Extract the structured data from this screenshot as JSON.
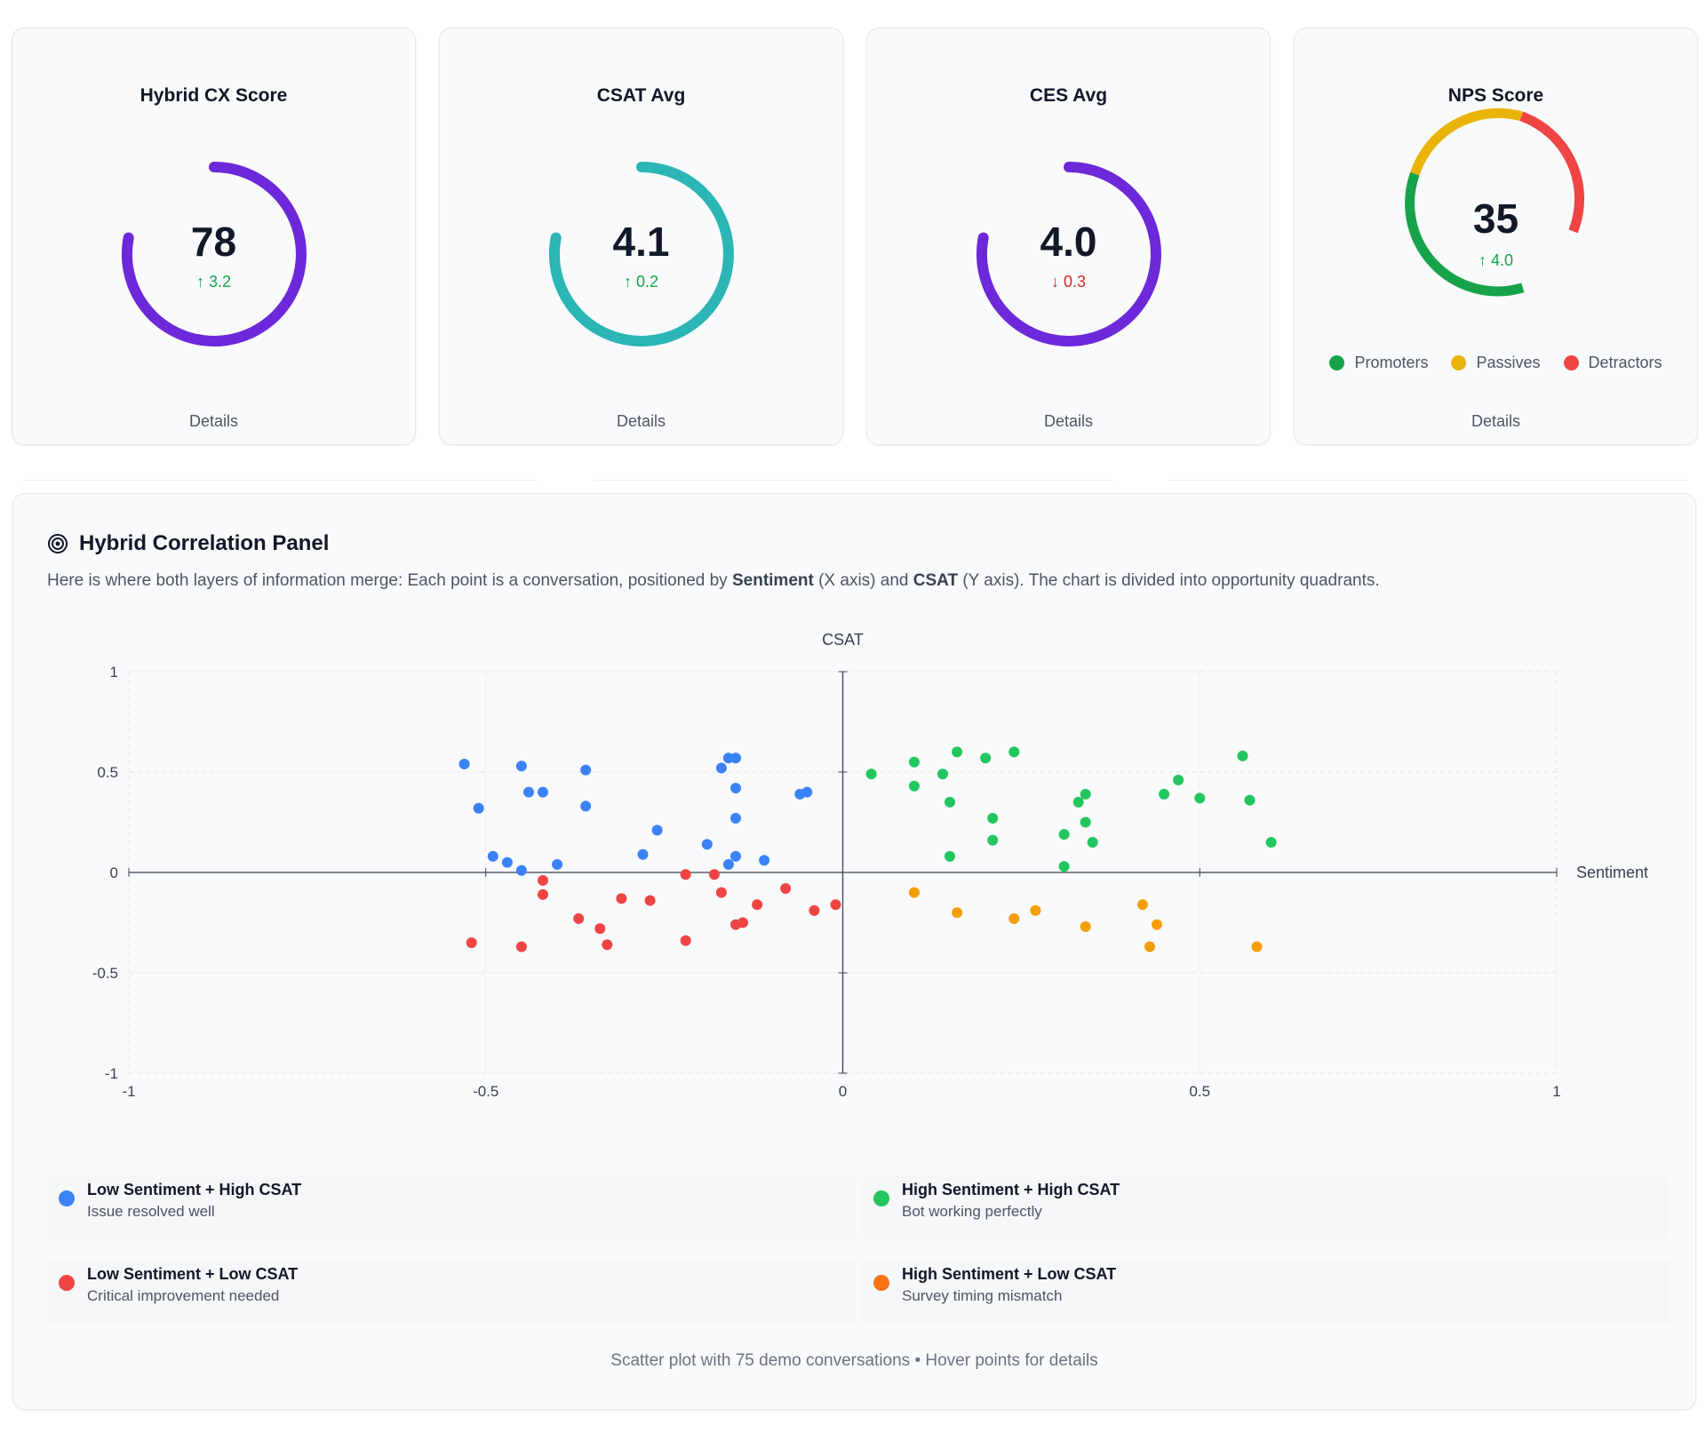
{
  "cards": [
    {
      "title": "Hybrid CX Score",
      "value": "78",
      "delta": "↑ 3.2",
      "delta_direction": "up",
      "details_label": "Details",
      "gauge_color": "#6d28d9",
      "fraction": 0.78
    },
    {
      "title": "CSAT Avg",
      "value": "4.1",
      "delta": "↑ 0.2",
      "delta_direction": "up",
      "details_label": "Details",
      "gauge_color": "#2bb5b5",
      "fraction": 0.78
    },
    {
      "title": "CES Avg",
      "value": "4.0",
      "delta": "↓ 0.3",
      "delta_direction": "down",
      "details_label": "Details",
      "gauge_color": "#6d28d9",
      "fraction": 0.78
    },
    {
      "title": "NPS Score",
      "value": "35",
      "delta": "↑ 4.0",
      "delta_direction": "up",
      "details_label": "Details",
      "legend": [
        {
          "label": "Promoters",
          "color": "#16a34a"
        },
        {
          "label": "Passives",
          "color": "#eab308"
        },
        {
          "label": "Detractors",
          "color": "#ef4444"
        }
      ]
    }
  ],
  "panel": {
    "icon": "target-icon",
    "title": "Hybrid Correlation Panel",
    "desc_pre": "Here is where both layers of information merge: Each point is a conversation, positioned by ",
    "desc_b1": "Sentiment",
    "desc_mid": " (X axis) and ",
    "desc_b2": "CSAT",
    "desc_post": " (Y axis). The chart is divided into opportunity quadrants.",
    "footnote": "Scatter plot with 75 demo conversations • Hover points for details"
  },
  "quadrants": [
    {
      "title": "Low Sentiment + High CSAT",
      "subtitle": "Issue resolved well",
      "color": "#3b82f6"
    },
    {
      "title": "High Sentiment + High CSAT",
      "subtitle": "Bot working perfectly",
      "color": "#22c55e"
    },
    {
      "title": "Low Sentiment + Low CSAT",
      "subtitle": "Critical improvement needed",
      "color": "#ef4444"
    },
    {
      "title": "High Sentiment + Low CSAT",
      "subtitle": "Survey timing mismatch",
      "color": "#f97316"
    }
  ],
  "chart_data": {
    "type": "scatter",
    "title": "",
    "xlabel": "Sentiment",
    "ylabel": "CSAT",
    "xlim": [
      -1,
      1
    ],
    "ylim": [
      -1,
      1
    ],
    "x_ticks": [
      "-1",
      "-0.5",
      "0",
      "0.5",
      "1"
    ],
    "y_ticks": [
      "1",
      "0.5",
      "0",
      "-0.5",
      "-1"
    ],
    "grid": true,
    "series": [
      {
        "color": "#3b82f6",
        "points": [
          [
            -0.53,
            0.54
          ],
          [
            -0.45,
            0.53
          ],
          [
            -0.36,
            0.51
          ],
          [
            -0.17,
            0.52
          ],
          [
            -0.16,
            0.57
          ],
          [
            -0.15,
            0.57
          ],
          [
            -0.44,
            0.4
          ],
          [
            -0.42,
            0.4
          ],
          [
            -0.51,
            0.32
          ],
          [
            -0.36,
            0.33
          ],
          [
            -0.15,
            0.42
          ],
          [
            -0.06,
            0.39
          ],
          [
            -0.05,
            0.4
          ],
          [
            -0.15,
            0.27
          ],
          [
            -0.26,
            0.21
          ],
          [
            -0.19,
            0.14
          ],
          [
            -0.28,
            0.09
          ],
          [
            -0.49,
            0.08
          ],
          [
            -0.47,
            0.05
          ],
          [
            -0.45,
            0.01
          ],
          [
            -0.4,
            0.04
          ],
          [
            -0.16,
            0.04
          ],
          [
            -0.15,
            0.08
          ],
          [
            -0.11,
            0.06
          ]
        ]
      },
      {
        "color": "#22c55e",
        "points": [
          [
            0.04,
            0.49
          ],
          [
            0.1,
            0.55
          ],
          [
            0.16,
            0.6
          ],
          [
            0.2,
            0.57
          ],
          [
            0.24,
            0.6
          ],
          [
            0.14,
            0.49
          ],
          [
            0.1,
            0.43
          ],
          [
            0.15,
            0.35
          ],
          [
            0.21,
            0.27
          ],
          [
            0.34,
            0.39
          ],
          [
            0.33,
            0.35
          ],
          [
            0.45,
            0.39
          ],
          [
            0.47,
            0.46
          ],
          [
            0.5,
            0.37
          ],
          [
            0.56,
            0.58
          ],
          [
            0.57,
            0.36
          ],
          [
            0.34,
            0.25
          ],
          [
            0.31,
            0.19
          ],
          [
            0.21,
            0.16
          ],
          [
            0.35,
            0.15
          ],
          [
            0.6,
            0.15
          ],
          [
            0.15,
            0.08
          ],
          [
            0.31,
            0.03
          ]
        ]
      },
      {
        "color": "#ef4444",
        "points": [
          [
            -0.22,
            -0.01
          ],
          [
            -0.18,
            -0.01
          ],
          [
            -0.42,
            -0.04
          ],
          [
            -0.42,
            -0.11
          ],
          [
            -0.17,
            -0.1
          ],
          [
            -0.08,
            -0.08
          ],
          [
            -0.31,
            -0.13
          ],
          [
            -0.27,
            -0.14
          ],
          [
            -0.12,
            -0.16
          ],
          [
            -0.01,
            -0.16
          ],
          [
            -0.37,
            -0.23
          ],
          [
            -0.34,
            -0.28
          ],
          [
            -0.15,
            -0.26
          ],
          [
            -0.14,
            -0.25
          ],
          [
            -0.04,
            -0.19
          ],
          [
            -0.52,
            -0.35
          ],
          [
            -0.45,
            -0.37
          ],
          [
            -0.33,
            -0.36
          ],
          [
            -0.22,
            -0.34
          ]
        ]
      },
      {
        "color": "#f59e0b",
        "points": [
          [
            0.1,
            -0.1
          ],
          [
            0.16,
            -0.2
          ],
          [
            0.24,
            -0.23
          ],
          [
            0.27,
            -0.19
          ],
          [
            0.34,
            -0.27
          ],
          [
            0.42,
            -0.16
          ],
          [
            0.44,
            -0.26
          ],
          [
            0.43,
            -0.37
          ],
          [
            0.58,
            -0.37
          ]
        ]
      }
    ]
  }
}
